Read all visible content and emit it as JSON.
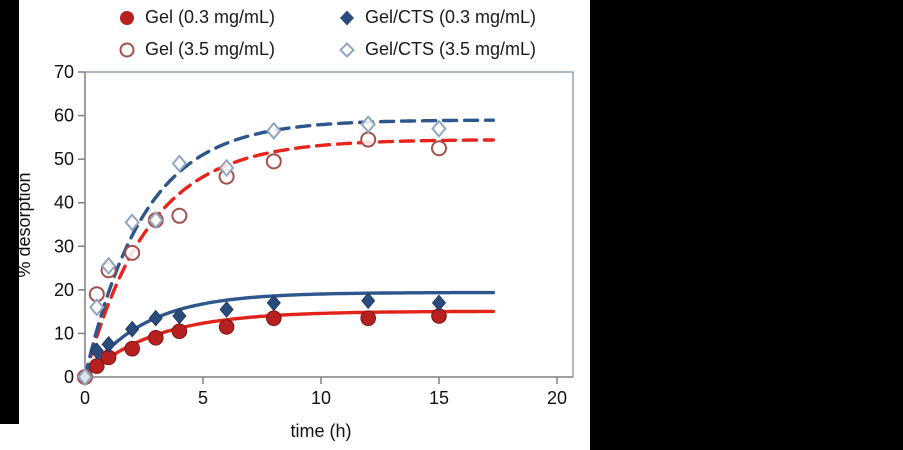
{
  "page": {
    "background": "#ffffff",
    "letterbox_color": "#000000"
  },
  "axis_labels": {
    "x": "time (h)",
    "y": "% desorption"
  },
  "chart_data": {
    "type": "scatter",
    "title": "",
    "xlabel": "time (h)",
    "ylabel": "% desorption",
    "xlim": [
      0,
      20
    ],
    "ylim": [
      0,
      70
    ],
    "x_ticks": [
      0,
      5,
      10,
      15,
      20
    ],
    "y_ticks": [
      0,
      10,
      20,
      30,
      40,
      50,
      60,
      70
    ],
    "grid": false,
    "legend_position": "top",
    "frame_color_light": "#95a3b4",
    "frame_color_dark": "#7f7f7f",
    "x": [
      0,
      0.5,
      1,
      2,
      3,
      4,
      6,
      8,
      12,
      15
    ],
    "series": [
      {
        "label": "Gel (0.3 mg/mL)",
        "marker": "filled-circle",
        "color": "#b6201e",
        "edge_color": "#7d1416",
        "line": "solid",
        "line_color": "#e2231a",
        "values": [
          0,
          2.5,
          4.5,
          6.5,
          9,
          10.5,
          11.5,
          13.5,
          13.5,
          14
        ],
        "fit": {
          "model": "vmax*(1-exp(-k*t))",
          "vmax": 15.1,
          "k": 0.34,
          "t_end": 17.3
        }
      },
      {
        "label": "Gel (3.5 mg/mL)",
        "marker": "open-circle",
        "color": "#a4504e",
        "edge_color": "#a4504e",
        "line": "dashed",
        "line_color": "#e8231c",
        "values": [
          0,
          19,
          24.5,
          28.5,
          36,
          37,
          46,
          49.5,
          54.5,
          52.5
        ],
        "fit": {
          "model": "vmax*(1-exp(-k*t))",
          "vmax": 54.5,
          "k": 0.37,
          "t_end": 17.3
        }
      },
      {
        "label": "Gel/CTS (0.3 mg/mL)",
        "marker": "filled-diamond",
        "color": "#2a4c7d",
        "edge_color": "#1e3a63",
        "line": "solid",
        "line_color": "#2d568c",
        "values": [
          0,
          6,
          7.5,
          11,
          13.5,
          14,
          15.5,
          17,
          17.5,
          17
        ],
        "fit": {
          "model": "vmax*(1-exp(-k*t))",
          "vmax": 19.4,
          "k": 0.4,
          "t_end": 17.3
        }
      },
      {
        "label": "Gel/CTS (3.5 mg/mL)",
        "marker": "open-diamond",
        "color": "#93a5bd",
        "edge_color": "#93a5bd",
        "line": "dashed",
        "line_color": "#2d568c",
        "values": [
          0,
          16,
          25.5,
          35.5,
          36,
          49,
          48,
          56.5,
          58,
          57
        ],
        "fit": {
          "model": "vmax*(1-exp(-k*t))",
          "vmax": 59.0,
          "k": 0.4,
          "t_end": 17.3
        }
      }
    ]
  }
}
